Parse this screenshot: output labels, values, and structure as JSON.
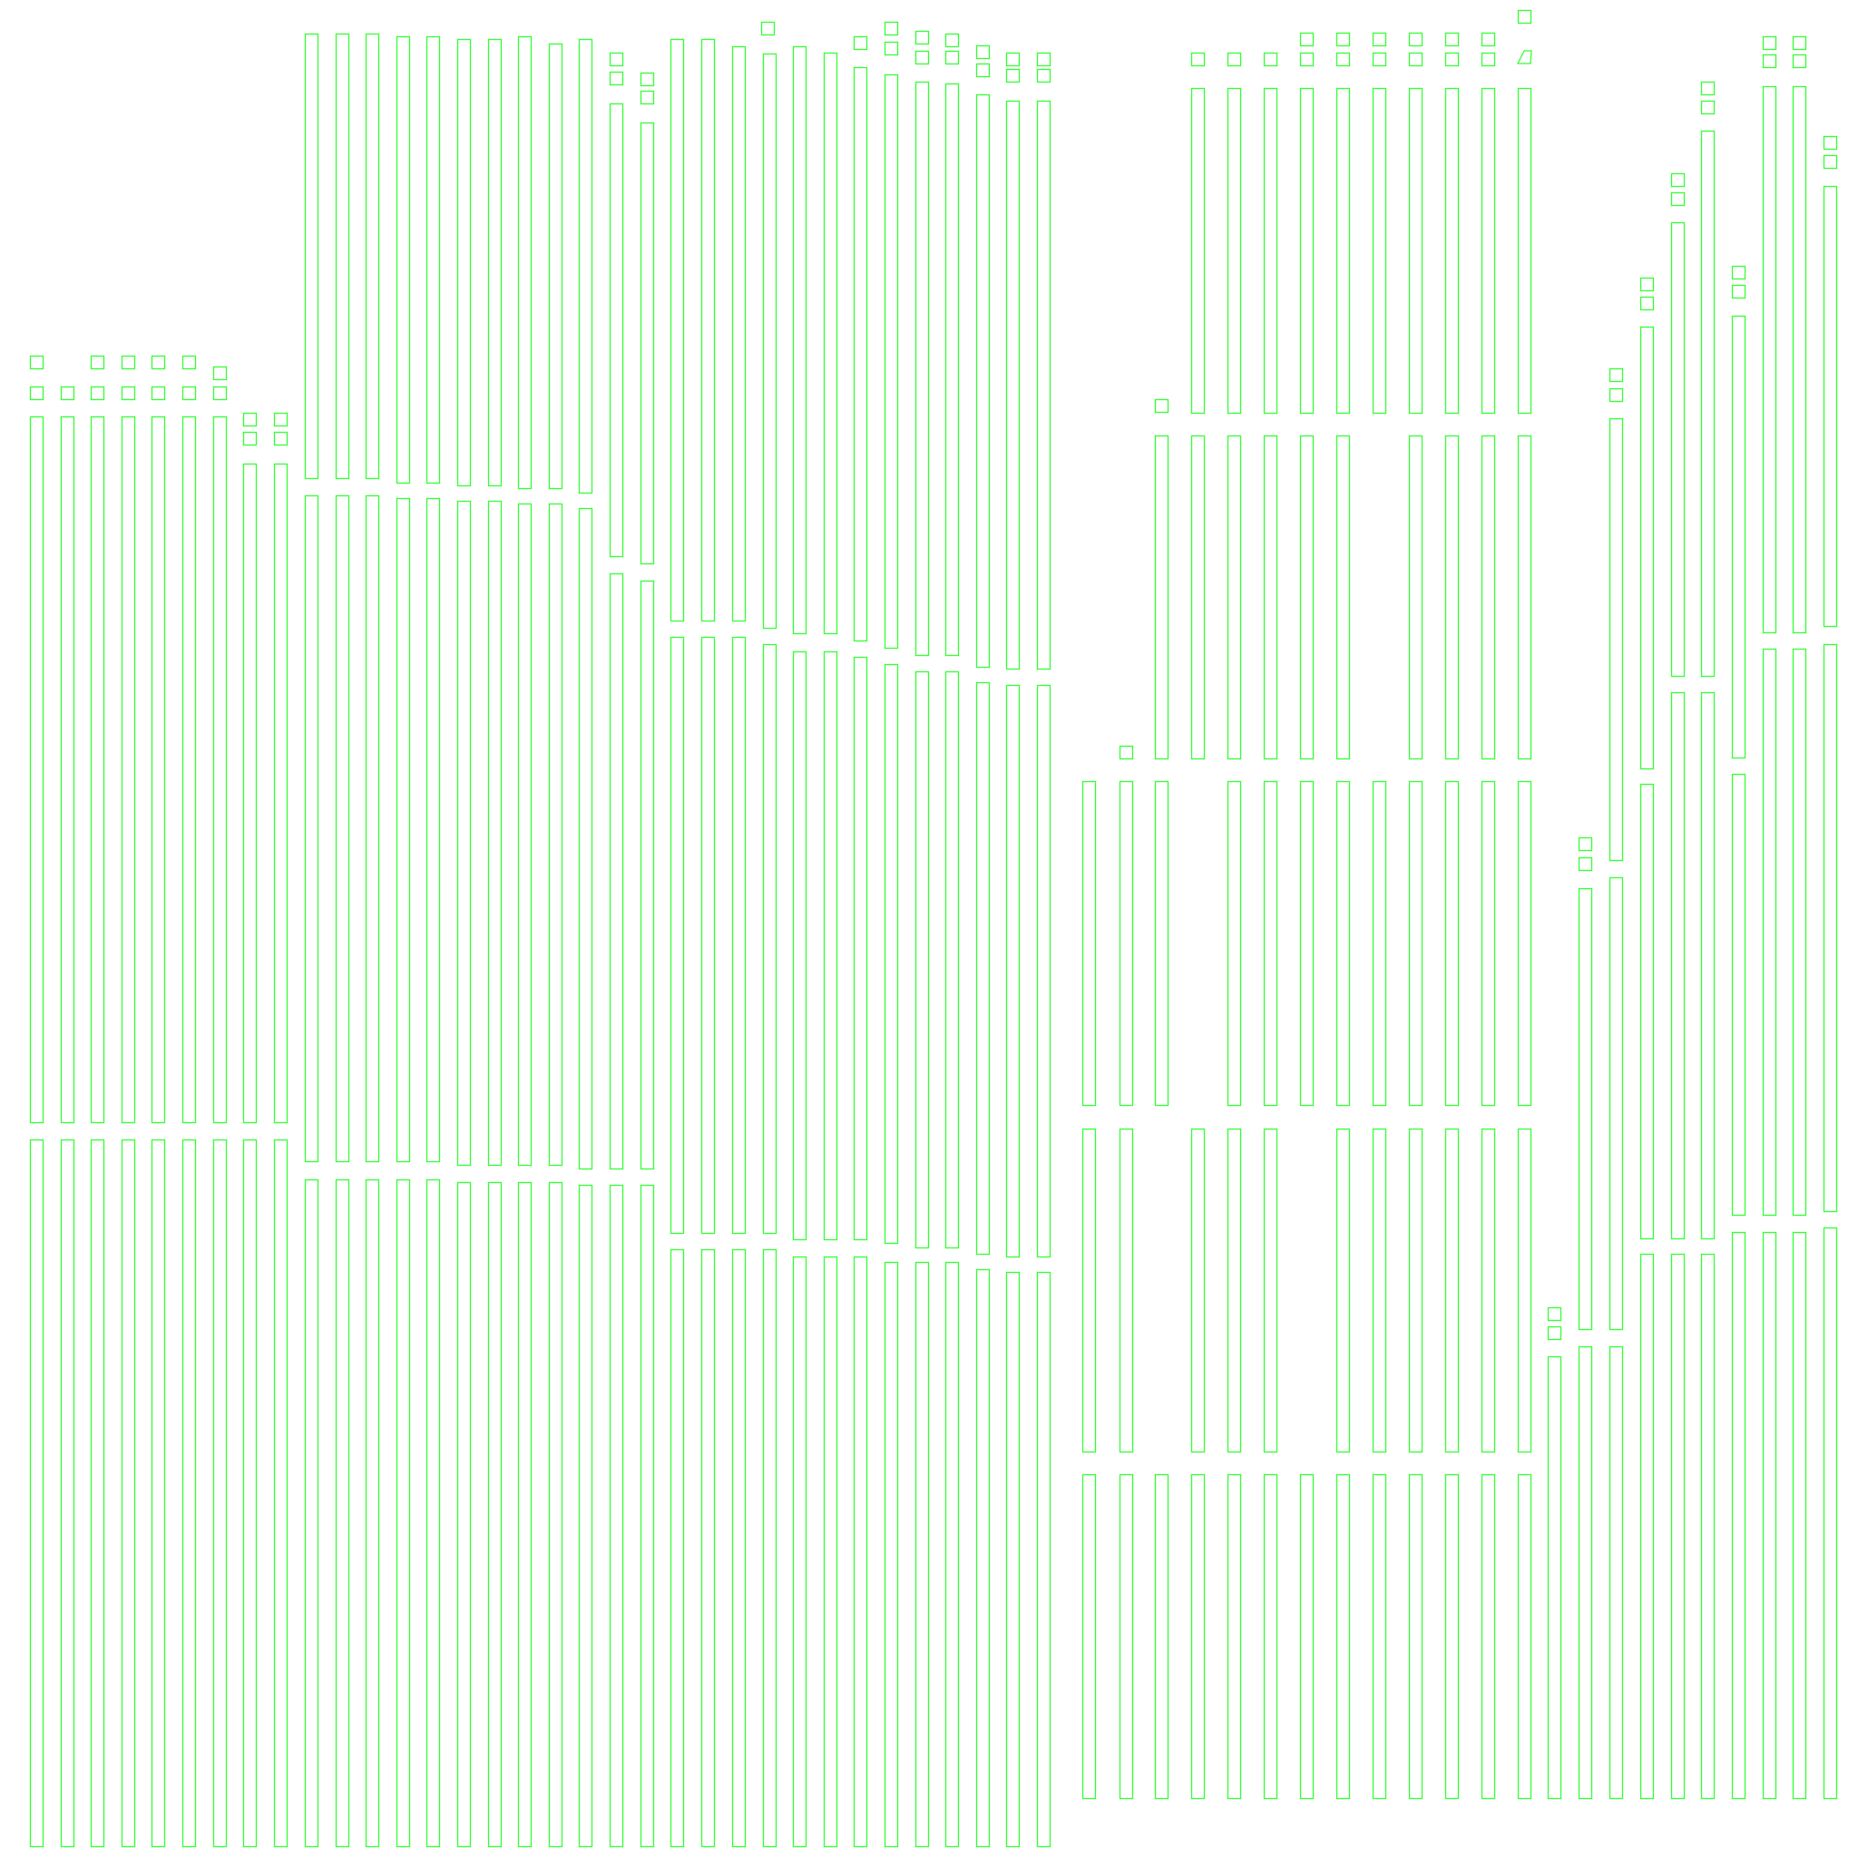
{
  "diagram": {
    "outline_color": "#33ff33",
    "background_color": "#ffffff",
    "shape_kinds": [
      "tall-rect",
      "small-square",
      "parallelogram-marker"
    ],
    "total_tall_rect_count": 253,
    "total_small_marker_count": 77
  }
}
